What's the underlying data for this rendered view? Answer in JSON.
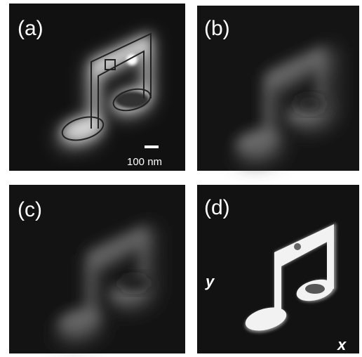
{
  "panels": [
    {
      "label": "(a)"
    },
    {
      "label": "(b)"
    },
    {
      "label": "(c)"
    },
    {
      "label": "(d)"
    }
  ],
  "scale_bar": {
    "label": "100 nm"
  },
  "axes": {
    "y": "y",
    "x": "x"
  }
}
